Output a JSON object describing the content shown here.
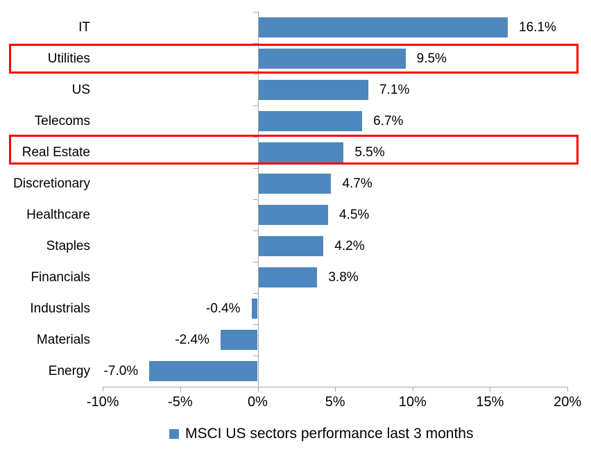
{
  "chart_data": {
    "type": "bar",
    "orientation": "horizontal",
    "title": "",
    "categories": [
      "IT",
      "Utilities",
      "US",
      "Telecoms",
      "Real Estate",
      "Discretionary",
      "Healthcare",
      "Staples",
      "Financials",
      "Industrials",
      "Materials",
      "Energy"
    ],
    "values": [
      16.1,
      9.5,
      7.1,
      6.7,
      5.5,
      4.7,
      4.5,
      4.2,
      3.8,
      -0.4,
      -2.4,
      -7.0
    ],
    "value_labels": [
      "16.1%",
      "9.5%",
      "7.1%",
      "6.7%",
      "5.5%",
      "4.7%",
      "4.5%",
      "4.2%",
      "3.8%",
      "-0.4%",
      "-2.4%",
      "-7.0%"
    ],
    "xlim": [
      -10,
      20
    ],
    "x_ticks": [
      {
        "value": -10,
        "label": "-10%"
      },
      {
        "value": -5,
        "label": "-5%"
      },
      {
        "value": 0,
        "label": "0%"
      },
      {
        "value": 5,
        "label": "5%"
      },
      {
        "value": 10,
        "label": "10%"
      },
      {
        "value": 15,
        "label": "15%"
      },
      {
        "value": 20,
        "label": "20%"
      }
    ],
    "grid": false,
    "highlighted_categories": [
      "Utilities",
      "Real Estate"
    ],
    "legend": {
      "label": "MSCI US sectors performance last 3 months",
      "position": "bottom"
    },
    "colors": {
      "bar": "#4e87bd",
      "axis": "#a6a6a6",
      "highlight_box": "#fe0000",
      "text": "#000000",
      "background": "#ffffff"
    }
  }
}
